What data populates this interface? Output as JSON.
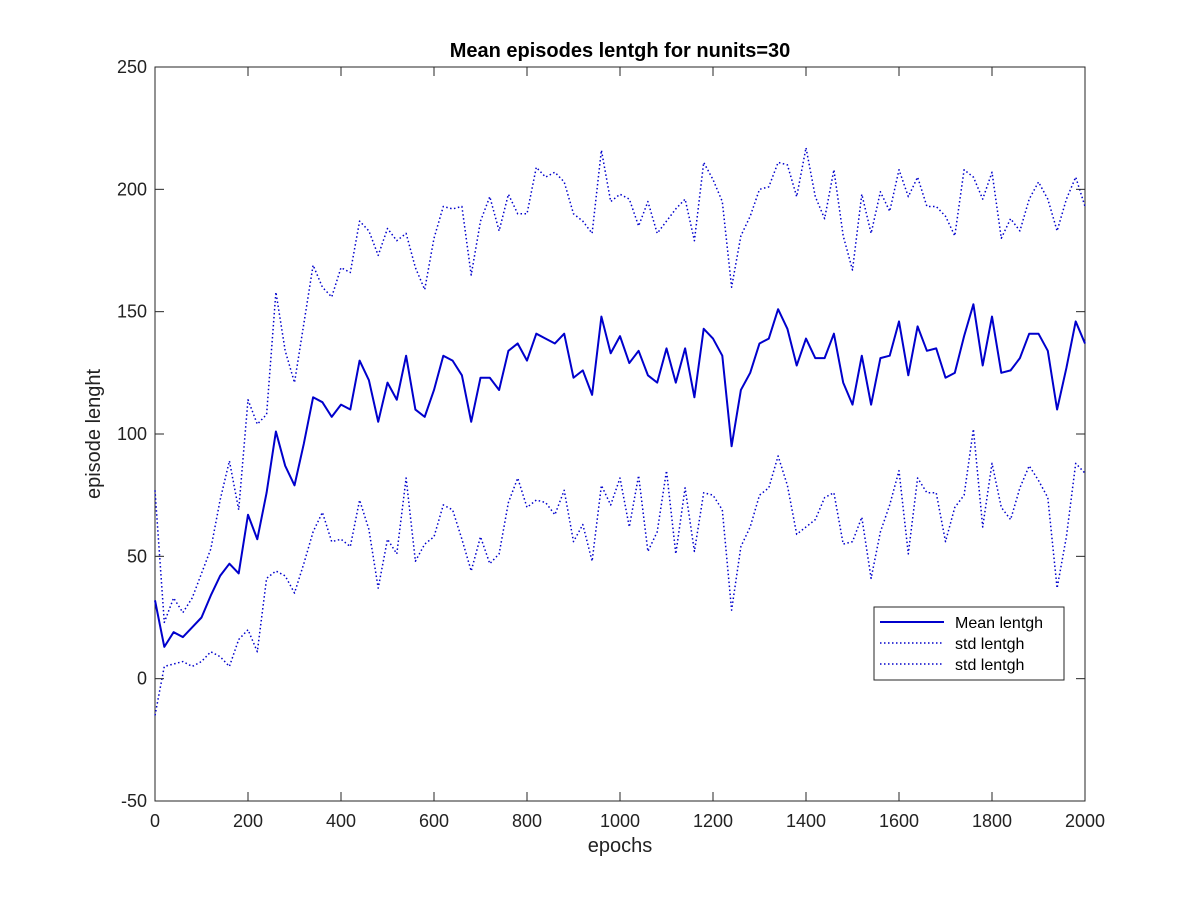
{
  "chart_data": {
    "type": "line",
    "title": "Mean episodes lentgh for nunits=30",
    "xlabel": "epochs",
    "ylabel": "episode lenght",
    "xlim": [
      0,
      2000
    ],
    "ylim": [
      -50,
      250
    ],
    "xticks": [
      0,
      200,
      400,
      600,
      800,
      1000,
      1200,
      1400,
      1600,
      1800,
      2000
    ],
    "yticks": [
      -50,
      0,
      50,
      100,
      150,
      200,
      250
    ],
    "grid": false,
    "legend_position": "lower-right",
    "x": [
      0,
      20,
      40,
      60,
      80,
      100,
      120,
      140,
      160,
      180,
      200,
      220,
      240,
      260,
      280,
      300,
      320,
      340,
      360,
      380,
      400,
      420,
      440,
      460,
      480,
      500,
      520,
      540,
      560,
      580,
      600,
      620,
      640,
      660,
      680,
      700,
      720,
      740,
      760,
      780,
      800,
      820,
      840,
      860,
      880,
      900,
      920,
      940,
      960,
      980,
      1000,
      1020,
      1040,
      1060,
      1080,
      1100,
      1120,
      1140,
      1160,
      1180,
      1200,
      1220,
      1240,
      1260,
      1280,
      1300,
      1320,
      1340,
      1360,
      1380,
      1400,
      1420,
      1440,
      1460,
      1480,
      1500,
      1520,
      1540,
      1560,
      1580,
      1600,
      1620,
      1640,
      1660,
      1680,
      1700,
      1720,
      1740,
      1760,
      1780,
      1800,
      1820,
      1840,
      1860,
      1880,
      1900,
      1920,
      1940,
      1960,
      1980,
      2000
    ],
    "series": [
      {
        "name": "Mean lentgh",
        "color": "#0000cc",
        "style": "solid",
        "values": [
          32,
          13,
          19,
          17,
          21,
          25,
          34,
          42,
          47,
          43,
          67,
          57,
          76,
          101,
          87,
          79,
          96,
          115,
          113,
          107,
          112,
          110,
          130,
          122,
          105,
          121,
          114,
          132,
          110,
          107,
          118,
          132,
          130,
          124,
          105,
          123,
          123,
          118,
          134,
          137,
          130,
          141,
          139,
          137,
          141,
          123,
          126,
          116,
          148,
          133,
          140,
          129,
          134,
          124,
          121,
          135,
          121,
          135,
          115,
          143,
          139,
          132,
          95,
          118,
          125,
          137,
          139,
          151,
          143,
          128,
          139,
          131,
          131,
          141,
          121,
          112,
          132,
          112,
          131,
          132,
          146,
          124,
          144,
          134,
          135,
          123,
          125,
          140,
          153,
          128,
          148,
          125,
          126,
          131,
          141,
          141,
          134,
          110,
          127,
          146,
          137
        ]
      },
      {
        "name": "std lentgh",
        "color": "#0000cc",
        "style": "dotted",
        "values": [
          77,
          23,
          33,
          27,
          33,
          43,
          53,
          73,
          89,
          69,
          114,
          104,
          108,
          158,
          134,
          121,
          145,
          169,
          160,
          156,
          168,
          166,
          187,
          183,
          173,
          184,
          179,
          182,
          168,
          159,
          180,
          193,
          192,
          193,
          165,
          187,
          197,
          183,
          198,
          190,
          190,
          209,
          205,
          207,
          203,
          190,
          187,
          182,
          216,
          195,
          198,
          196,
          185,
          195,
          182,
          187,
          192,
          196,
          179,
          211,
          204,
          195,
          160,
          181,
          189,
          200,
          201,
          211,
          210,
          197,
          217,
          197,
          188,
          208,
          181,
          167,
          198,
          182,
          199,
          191,
          208,
          197,
          205,
          193,
          193,
          189,
          181,
          208,
          205,
          196,
          207,
          180,
          188,
          183,
          196,
          203,
          196,
          183,
          196,
          205,
          193
        ]
      },
      {
        "name": "std lentgh",
        "color": "#0000cc",
        "style": "dotted",
        "values": [
          -15,
          5,
          6,
          7,
          5,
          7,
          11,
          9,
          5,
          16,
          20,
          11,
          41,
          44,
          42,
          35,
          47,
          60,
          68,
          56,
          57,
          54,
          73,
          61,
          37,
          57,
          51,
          82,
          48,
          55,
          58,
          71,
          69,
          57,
          44,
          58,
          47,
          51,
          72,
          82,
          70,
          73,
          72,
          67,
          77,
          56,
          63,
          48,
          79,
          71,
          82,
          62,
          83,
          52,
          60,
          85,
          51,
          78,
          52,
          76,
          75,
          69,
          28,
          54,
          62,
          75,
          78,
          91,
          79,
          59,
          62,
          65,
          74,
          76,
          55,
          56,
          66,
          41,
          60,
          71,
          85,
          51,
          82,
          76,
          76,
          56,
          70,
          75,
          102,
          62,
          88,
          70,
          65,
          78,
          87,
          81,
          74,
          37,
          58,
          88,
          84
        ]
      }
    ]
  }
}
